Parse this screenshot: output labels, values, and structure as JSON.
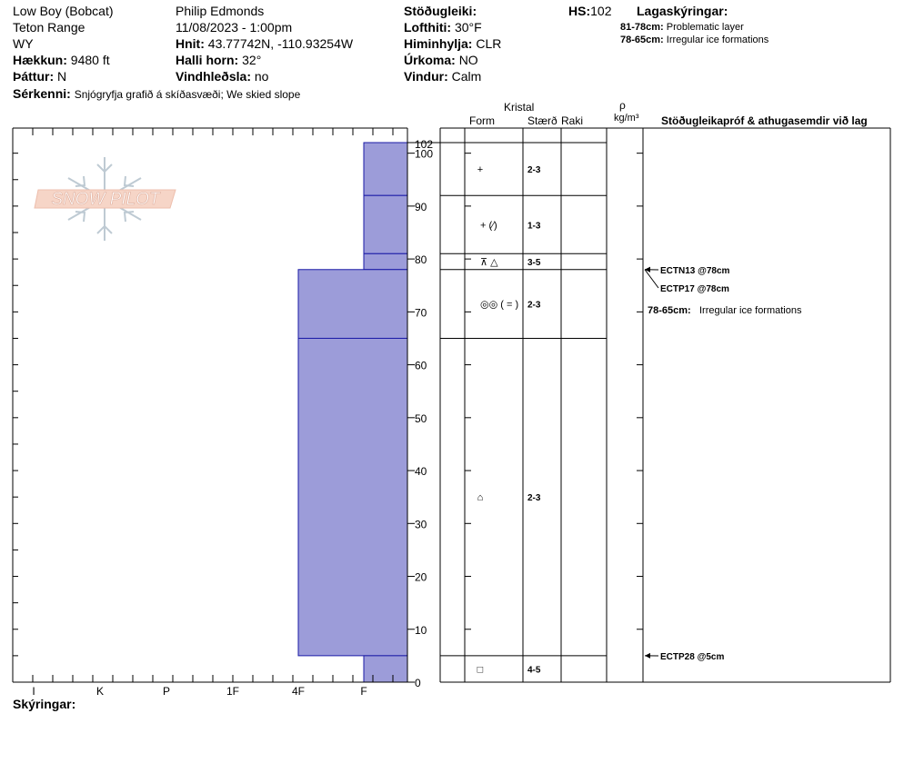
{
  "header": {
    "location": "Low Boy (Bobcat)",
    "range": "Teton Range",
    "state": "WY",
    "elevation_label": "Hækkun:",
    "elevation_value": "9480 ft",
    "aspect_label": "Þáttur:",
    "aspect_value": "N",
    "features_label": "Sérkenni:",
    "features_value": "Snjógryfja grafið á skíðasvæði;  We skied slope",
    "observer": "Philip Edmonds",
    "datetime": "11/08/2023 - 1:00pm",
    "coords_label": "Hnit:",
    "coords_value": "43.77742N, -110.93254W",
    "slope_label": "Halli horn:",
    "slope_value": "32°",
    "wind_loading_label": "Vindhleðsla:",
    "wind_loading_value": "no",
    "stability_label": "Stöðugleiki:",
    "stability_value": "",
    "air_temp_label": "Lofthiti:",
    "air_temp_value": "30°F",
    "sky_label": "Himinhylja:",
    "sky_value": "CLR",
    "precip_label": "Úrkoma:",
    "precip_value": "NO",
    "wind_label": "Vindur:",
    "wind_value": "Calm",
    "hs_label": "HS:",
    "hs_value": "102",
    "legend_title": "Lagaskýringar:",
    "legend_items": [
      {
        "range": "81-78cm:",
        "text": "Problematic layer"
      },
      {
        "range": "78-65cm:",
        "text": "Irregular ice formations"
      }
    ],
    "logo_text": "SNOW PILOT"
  },
  "columns": {
    "crystal": "Kristal",
    "form": "Form",
    "size": "Stærð",
    "moisture": "Raki",
    "rho": "ρ",
    "density_unit": "kg/m³",
    "comments": "Stöðugleikapróf & athugasemdir við lag"
  },
  "footer": {
    "notes_label": "Skýringar:",
    "notes_value": ""
  },
  "chart_data": {
    "type": "bar",
    "title": "",
    "y_axis": {
      "min": 0,
      "max": 102,
      "ticks": [
        0,
        10,
        20,
        30,
        40,
        50,
        60,
        70,
        80,
        90,
        100
      ],
      "extra_tick": 102
    },
    "hardness_scale": [
      "I",
      "K",
      "P",
      "1F",
      "4F",
      "F"
    ],
    "layers": [
      {
        "top": 102,
        "bottom": 92,
        "hardness": "F",
        "form": "+",
        "size": "2-3"
      },
      {
        "top": 92,
        "bottom": 81,
        "hardness": "F",
        "form": "+ (⁄)",
        "size": "1-3"
      },
      {
        "top": 81,
        "bottom": 78,
        "hardness": "F",
        "form": "⊼ △",
        "size": "3-5"
      },
      {
        "top": 78,
        "bottom": 65,
        "hardness": "4F",
        "form": "◎◎ ( = )",
        "size": "2-3"
      },
      {
        "top": 65,
        "bottom": 5,
        "hardness": "4F",
        "form": "⌂",
        "size": "2-3"
      },
      {
        "top": 5,
        "bottom": 0,
        "hardness": "F",
        "form": "□",
        "size": "4-5"
      }
    ],
    "tests": [
      {
        "label": "ECTN13 @78cm",
        "depth": 78
      },
      {
        "label": "ECTP17 @78cm",
        "depth": 78
      },
      {
        "label": "ECTP28 @5cm",
        "depth": 5
      }
    ],
    "comments": [
      {
        "range": "78-65cm:",
        "text": "Irregular ice formations"
      }
    ],
    "colors": {
      "bar_fill": "#9c9cd9",
      "bar_stroke": "#1a1aa6"
    }
  }
}
